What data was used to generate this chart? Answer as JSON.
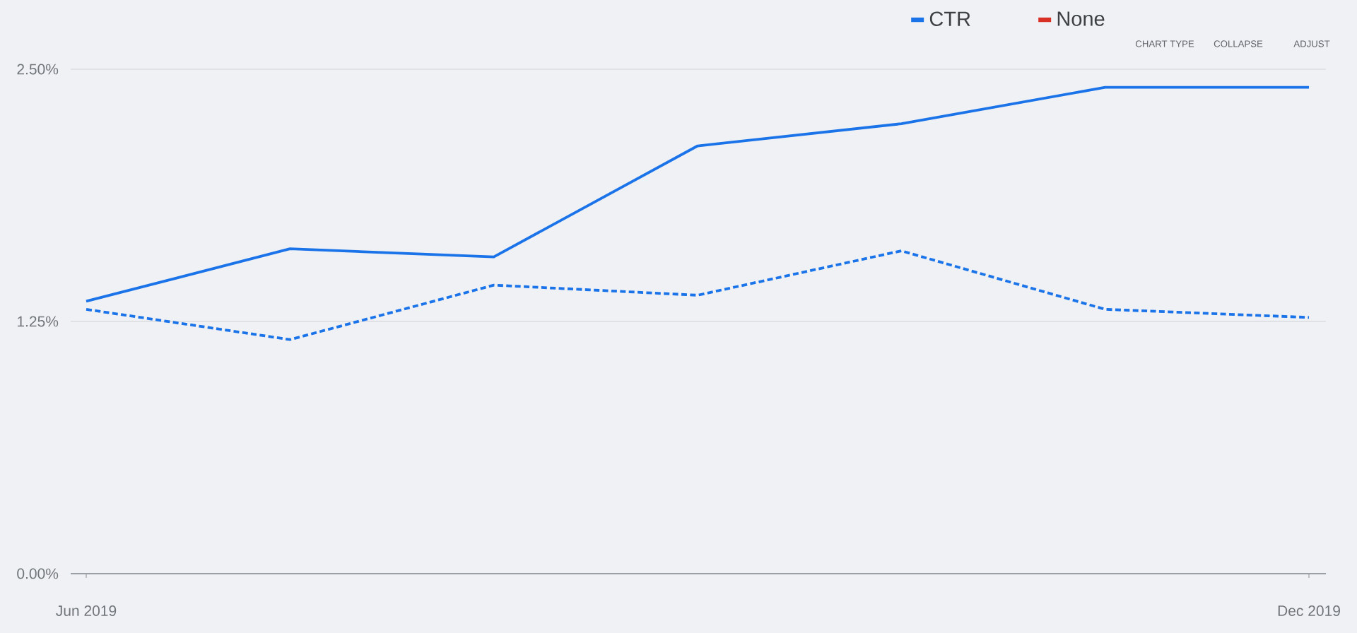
{
  "chart_data": {
    "type": "line",
    "categories": [
      "Jun 2019",
      null,
      null,
      null,
      null,
      null,
      "Dec 2019"
    ],
    "series": [
      {
        "name": "CTR",
        "color": "#1a73e8",
        "line_style": "solid",
        "values": [
          1.35,
          1.61,
          1.57,
          2.12,
          2.23,
          2.41,
          2.41
        ]
      },
      {
        "color": "#1a73e8",
        "line_style": "dashed",
        "values": [
          1.31,
          1.16,
          1.43,
          1.38,
          1.6,
          1.31,
          1.27
        ]
      },
      {
        "name": "None",
        "color": "#d93025",
        "line_style": "solid",
        "values": [
          null,
          null,
          null,
          null,
          null,
          null,
          null
        ]
      }
    ],
    "ylim": [
      0,
      2.5
    ],
    "yticks": [
      {
        "value": 0,
        "label": "0.00%"
      },
      {
        "value": 1.25,
        "label": "1.25%"
      },
      {
        "value": 2.5,
        "label": "2.50%"
      }
    ],
    "grid": "y",
    "legend": "top right",
    "annotations": [
      "CHART TYPE",
      "COLLAPSE",
      "ADJUST"
    ]
  }
}
